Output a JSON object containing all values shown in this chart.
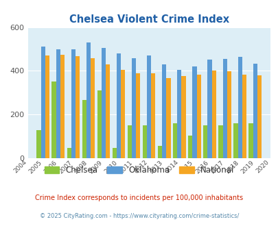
{
  "title": "Chelsea Violent Crime Index",
  "years": [
    2004,
    2005,
    2006,
    2007,
    2008,
    2009,
    2010,
    2011,
    2012,
    2013,
    2014,
    2015,
    2016,
    2017,
    2018,
    2019,
    2020
  ],
  "chelsea": [
    null,
    130,
    350,
    47,
    265,
    310,
    47,
    150,
    150,
    55,
    160,
    105,
    150,
    150,
    160,
    160,
    null
  ],
  "oklahoma": [
    null,
    510,
    500,
    500,
    530,
    505,
    480,
    458,
    470,
    430,
    405,
    420,
    450,
    455,
    465,
    432,
    null
  ],
  "national": [
    null,
    470,
    473,
    468,
    457,
    430,
    405,
    390,
    390,
    368,
    375,
    383,
    400,
    397,
    383,
    379,
    null
  ],
  "chelsea_color": "#8dc63f",
  "oklahoma_color": "#5b9bd5",
  "national_color": "#f5a623",
  "bg_color": "#ddeef6",
  "ylim": [
    0,
    600
  ],
  "yticks": [
    0,
    200,
    400,
    600
  ],
  "subtitle": "Crime Index corresponds to incidents per 100,000 inhabitants",
  "copyright": "© 2025 CityRating.com - https://www.cityrating.com/crime-statistics/",
  "title_color": "#1f5fa6",
  "subtitle_color": "#cc2200",
  "copyright_color": "#5588aa",
  "bar_width": 0.28
}
